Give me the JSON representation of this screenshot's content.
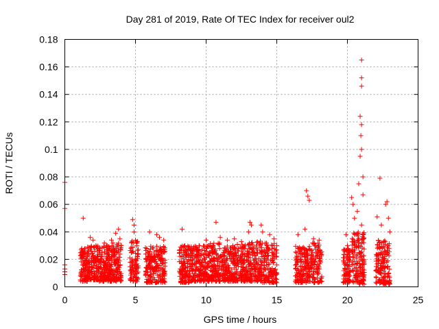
{
  "chart_data": {
    "type": "scatter",
    "title": "Day 281 of 2019, Rate Of TEC Index for receiver oul2",
    "xlabel": "GPS time / hours",
    "ylabel": "ROTI / TECUs",
    "xlim": [
      0,
      25
    ],
    "ylim": [
      0,
      0.18
    ],
    "xticks": [
      0,
      5,
      10,
      15,
      20,
      25
    ],
    "yticks": [
      0,
      0.02,
      0.04,
      0.06,
      0.08,
      0.1,
      0.12,
      0.14,
      0.16,
      0.18
    ],
    "xtick_labels": [
      "0",
      "5",
      "10",
      "15",
      "20",
      "25"
    ],
    "ytick_labels": [
      "0",
      "0.02",
      "0.04",
      "0.06",
      "0.08",
      "0.1",
      "0.12",
      "0.14",
      "0.16",
      "0.18"
    ],
    "grid": true,
    "marker": "plus",
    "color": "#ff0000",
    "series": [
      {
        "points": [
          [
            0.0,
            0.076
          ],
          [
            0.0,
            0.057
          ],
          [
            0.0,
            0.016
          ],
          [
            0.0,
            0.013
          ],
          [
            0.0,
            0.011
          ],
          [
            0.0,
            0.009
          ],
          [
            1.3,
            0.05
          ],
          [
            1.2,
            0.028
          ],
          [
            1.3,
            0.022
          ],
          [
            1.4,
            0.018
          ],
          [
            1.5,
            0.014
          ],
          [
            1.6,
            0.01
          ],
          [
            1.8,
            0.036
          ],
          [
            2.0,
            0.034
          ],
          [
            2.2,
            0.03
          ],
          [
            2.5,
            0.028
          ],
          [
            2.8,
            0.032
          ],
          [
            3.0,
            0.03
          ],
          [
            3.3,
            0.034
          ],
          [
            3.6,
            0.039
          ],
          [
            3.8,
            0.042
          ],
          [
            3.9,
            0.035
          ],
          [
            4.0,
            0.03
          ],
          [
            4.8,
            0.049
          ],
          [
            4.9,
            0.045
          ],
          [
            4.9,
            0.04
          ],
          [
            5.0,
            0.034
          ],
          [
            5.1,
            0.03
          ],
          [
            6.0,
            0.04
          ],
          [
            6.5,
            0.038
          ],
          [
            6.7,
            0.036
          ],
          [
            7.0,
            0.034
          ],
          [
            8.3,
            0.042
          ],
          [
            8.5,
            0.03
          ],
          [
            9.0,
            0.028
          ],
          [
            9.5,
            0.03
          ],
          [
            10.0,
            0.034
          ],
          [
            10.7,
            0.047
          ],
          [
            11.0,
            0.036
          ],
          [
            11.5,
            0.034
          ],
          [
            12.0,
            0.035
          ],
          [
            12.5,
            0.033
          ],
          [
            13.0,
            0.04
          ],
          [
            13.1,
            0.047
          ],
          [
            13.2,
            0.045
          ],
          [
            13.9,
            0.045
          ],
          [
            14.0,
            0.04
          ],
          [
            14.5,
            0.038
          ],
          [
            14.8,
            0.035
          ],
          [
            15.0,
            0.03
          ],
          [
            16.5,
            0.038
          ],
          [
            17.0,
            0.042
          ],
          [
            17.1,
            0.07
          ],
          [
            17.2,
            0.066
          ],
          [
            17.3,
            0.063
          ],
          [
            17.6,
            0.035
          ],
          [
            18.0,
            0.034
          ],
          [
            19.9,
            0.038
          ],
          [
            20.0,
            0.03
          ],
          [
            20.3,
            0.065
          ],
          [
            20.4,
            0.06
          ],
          [
            20.5,
            0.05
          ],
          [
            20.7,
            0.055
          ],
          [
            20.8,
            0.075
          ],
          [
            20.9,
            0.095
          ],
          [
            20.9,
            0.124
          ],
          [
            20.95,
            0.11
          ],
          [
            21.0,
            0.165
          ],
          [
            21.0,
            0.152
          ],
          [
            21.0,
            0.146
          ],
          [
            21.0,
            0.118
          ],
          [
            21.0,
            0.1
          ],
          [
            21.1,
            0.08
          ],
          [
            21.1,
            0.067
          ],
          [
            21.0,
            0.045
          ],
          [
            21.1,
            0.038
          ],
          [
            22.1,
            0.051
          ],
          [
            22.3,
            0.079
          ],
          [
            22.4,
            0.045
          ],
          [
            22.7,
            0.06
          ],
          [
            22.8,
            0.062
          ],
          [
            22.9,
            0.05
          ],
          [
            23.0,
            0.04
          ]
        ],
        "bands": [
          [
            1.1,
            1.6,
            0.004,
            0.028,
            90
          ],
          [
            1.6,
            2.4,
            0.005,
            0.03,
            140
          ],
          [
            2.4,
            3.2,
            0.004,
            0.03,
            140
          ],
          [
            3.2,
            4.0,
            0.004,
            0.032,
            140
          ],
          [
            4.6,
            5.2,
            0.004,
            0.034,
            90
          ],
          [
            5.7,
            6.4,
            0.003,
            0.03,
            110
          ],
          [
            6.4,
            7.1,
            0.003,
            0.03,
            110
          ],
          [
            8.1,
            9.0,
            0.003,
            0.03,
            150
          ],
          [
            9.0,
            10.0,
            0.004,
            0.03,
            160
          ],
          [
            10.0,
            11.0,
            0.004,
            0.032,
            160
          ],
          [
            11.0,
            12.0,
            0.004,
            0.03,
            160
          ],
          [
            12.0,
            13.0,
            0.004,
            0.032,
            160
          ],
          [
            13.0,
            14.0,
            0.004,
            0.034,
            160
          ],
          [
            14.0,
            15.0,
            0.003,
            0.032,
            150
          ],
          [
            16.3,
            17.0,
            0.003,
            0.03,
            110
          ],
          [
            17.0,
            18.2,
            0.003,
            0.032,
            160
          ],
          [
            19.7,
            20.2,
            0.003,
            0.028,
            90
          ],
          [
            20.3,
            21.2,
            0.002,
            0.04,
            160
          ],
          [
            22.0,
            23.0,
            0.002,
            0.034,
            160
          ]
        ]
      }
    ]
  }
}
